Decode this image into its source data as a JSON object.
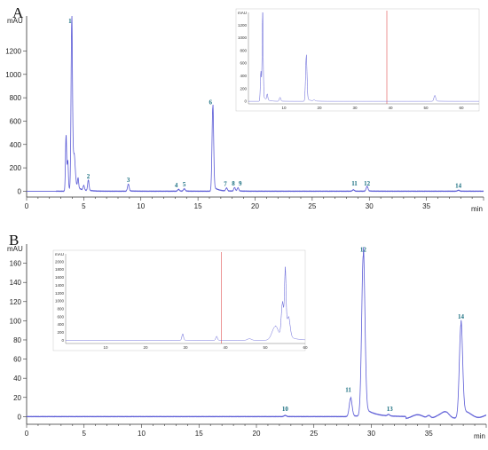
{
  "panels": [
    {
      "panel_label": "A",
      "chart_data": {
        "type": "line",
        "ylabel": "mAU",
        "xlabel": "min",
        "xlim": [
          0,
          40
        ],
        "ylim": [
          -50,
          1500
        ],
        "xticks": [
          "0",
          "5",
          "10",
          "15",
          "20",
          "25",
          "30",
          "35"
        ],
        "yticks": [
          "0",
          "200",
          "400",
          "600",
          "800",
          "1000",
          "1200"
        ],
        "color": "#5b5bd6",
        "peaks": [
          {
            "x": 3.45,
            "y": 470,
            "w": 0.05
          },
          {
            "x": 3.6,
            "y": 240,
            "w": 0.05
          },
          {
            "x": 3.95,
            "y": 1420,
            "w": 0.06
          },
          {
            "x": 4.15,
            "y": 260,
            "w": 0.1
          },
          {
            "x": 4.5,
            "y": 85,
            "w": 0.05
          },
          {
            "x": 5.4,
            "y": 90,
            "w": 0.06
          },
          {
            "x": 5.0,
            "y": 40,
            "w": 0.06
          },
          {
            "x": 8.9,
            "y": 60,
            "w": 0.07
          },
          {
            "x": 13.3,
            "y": 15,
            "w": 0.08
          },
          {
            "x": 13.8,
            "y": 20,
            "w": 0.08
          },
          {
            "x": 16.3,
            "y": 720,
            "w": 0.07
          },
          {
            "x": 17.5,
            "y": 25,
            "w": 0.07
          },
          {
            "x": 18.2,
            "y": 30,
            "w": 0.07
          },
          {
            "x": 18.5,
            "y": 28,
            "w": 0.07
          },
          {
            "x": 28.6,
            "y": 12,
            "w": 0.08
          },
          {
            "x": 29.8,
            "y": 40,
            "w": 0.08
          },
          {
            "x": 37.8,
            "y": 8,
            "w": 0.09
          }
        ],
        "peak_labels": [
          {
            "text": "1",
            "x": 3.8,
            "y": 1440
          },
          {
            "text": "2",
            "x": 5.4,
            "y": 110
          },
          {
            "text": "3",
            "x": 8.9,
            "y": 80
          },
          {
            "text": "4",
            "x": 13.1,
            "y": 35
          },
          {
            "text": "5",
            "x": 13.8,
            "y": 40
          },
          {
            "text": "6",
            "x": 16.1,
            "y": 745
          },
          {
            "text": "7",
            "x": 17.4,
            "y": 45
          },
          {
            "text": "8",
            "x": 18.1,
            "y": 50
          },
          {
            "text": "9",
            "x": 18.7,
            "y": 50
          },
          {
            "text": "11",
            "x": 28.7,
            "y": 50
          },
          {
            "text": "12",
            "x": 29.8,
            "y": 50
          },
          {
            "text": "14",
            "x": 37.8,
            "y": 30
          }
        ],
        "inset": {
          "ylabel": "mAU",
          "xlim": [
            0,
            65
          ],
          "ylim": [
            -40,
            1400
          ],
          "xticks": [
            "10",
            "20",
            "30",
            "40",
            "50",
            "60"
          ],
          "yticks": [
            "0",
            "200",
            "400",
            "600",
            "800",
            "1000",
            "1200"
          ],
          "marker_x": 39,
          "peaks": [
            {
              "x": 3.5,
              "y": 450,
              "w": 0.15
            },
            {
              "x": 4.0,
              "y": 1320,
              "w": 0.15
            },
            {
              "x": 5.3,
              "y": 90,
              "w": 0.15
            },
            {
              "x": 8.9,
              "y": 60,
              "w": 0.2
            },
            {
              "x": 16.3,
              "y": 700,
              "w": 0.2
            },
            {
              "x": 18.5,
              "y": 20,
              "w": 0.2
            },
            {
              "x": 52.5,
              "y": 90,
              "w": 0.25
            }
          ]
        }
      }
    },
    {
      "panel_label": "B",
      "chart_data": {
        "type": "line",
        "ylabel": "mAU",
        "xlabel": "min",
        "xlim": [
          0,
          40
        ],
        "ylim": [
          -8,
          180
        ],
        "xticks": [
          "0",
          "5",
          "10",
          "15",
          "20",
          "25",
          "30",
          "35"
        ],
        "yticks": [
          "0",
          "20",
          "40",
          "60",
          "80",
          "100",
          "120",
          "140",
          "160"
        ],
        "color": "#5b5bd6",
        "peaks": [
          {
            "x": 22.5,
            "y": 1.2,
            "w": 0.1
          },
          {
            "x": 28.2,
            "y": 19,
            "w": 0.12
          },
          {
            "x": 29.3,
            "y": 168,
            "w": 0.14
          },
          {
            "x": 31.5,
            "y": 1.5,
            "w": 0.1
          },
          {
            "x": 35.0,
            "y": 3,
            "w": 0.15
          },
          {
            "x": 36.5,
            "y": 4,
            "w": 0.3
          },
          {
            "x": 37.8,
            "y": 95,
            "w": 0.14
          }
        ],
        "peak_labels": [
          {
            "text": "10",
            "x": 22.5,
            "y": 6
          },
          {
            "text": "11",
            "x": 28.0,
            "y": 26
          },
          {
            "text": "12",
            "x": 29.3,
            "y": 172
          },
          {
            "text": "13",
            "x": 31.6,
            "y": 6
          },
          {
            "text": "14",
            "x": 37.8,
            "y": 102
          }
        ],
        "inset": {
          "ylabel": "mAU",
          "xlim": [
            0,
            60
          ],
          "ylim": [
            -80,
            2200
          ],
          "xticks": [
            "10",
            "20",
            "30",
            "40",
            "50",
            "60"
          ],
          "yticks": [
            "0",
            "200",
            "400",
            "600",
            "800",
            "1000",
            "1200",
            "1400",
            "1600",
            "1800",
            "2000"
          ],
          "marker_x": 39,
          "peaks": [
            {
              "x": 29.3,
              "y": 160,
              "w": 0.2
            },
            {
              "x": 37.8,
              "y": 100,
              "w": 0.2
            },
            {
              "x": 46,
              "y": 40,
              "w": 0.5
            },
            {
              "x": 52.5,
              "y": 350,
              "w": 0.8
            },
            {
              "x": 54.3,
              "y": 900,
              "w": 0.3
            },
            {
              "x": 55.0,
              "y": 1600,
              "w": 0.2
            },
            {
              "x": 55.8,
              "y": 500,
              "w": 0.4
            }
          ]
        }
      }
    }
  ]
}
